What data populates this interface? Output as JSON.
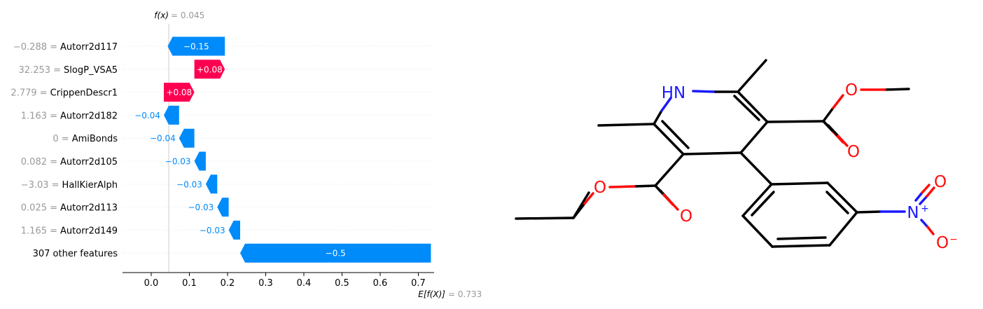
{
  "chart_data": {
    "type": "waterfall",
    "fx_label": "f(x)",
    "fx_value": "= 0.045",
    "efx_label": "E[f(X)]",
    "efx_value": "= 0.733",
    "fx": 0.045,
    "base_value": 0.733,
    "xlim": [
      -0.075,
      0.735
    ],
    "xticks": [
      "0.0",
      "0.1",
      "0.2",
      "0.3",
      "0.4",
      "0.5",
      "0.6",
      "0.7"
    ],
    "features": [
      {
        "value": "−0.288 =",
        "name": "Autorr2d117",
        "shap": -0.15,
        "label": "−0.15"
      },
      {
        "value": "32.253 =",
        "name": "SlogP_VSA5",
        "shap": 0.08,
        "label": "+0.08"
      },
      {
        "value": "2.779 =",
        "name": "CrippenDescr1",
        "shap": 0.08,
        "label": "+0.08"
      },
      {
        "value": "1.163 =",
        "name": "Autorr2d182",
        "shap": -0.04,
        "label": "−0.04"
      },
      {
        "value": "0 =",
        "name": "AmiBonds",
        "shap": -0.04,
        "label": "−0.04"
      },
      {
        "value": "0.082 =",
        "name": "Autorr2d105",
        "shap": -0.03,
        "label": "−0.03"
      },
      {
        "value": "−3.03 =",
        "name": "HallKierAlph",
        "shap": -0.03,
        "label": "−0.03"
      },
      {
        "value": "0.025 =",
        "name": "Autorr2d113",
        "shap": -0.03,
        "label": "−0.03"
      },
      {
        "value": "1.165 =",
        "name": "Autorr2d149",
        "shap": -0.03,
        "label": "−0.03"
      },
      {
        "value": "",
        "name": "307 other features",
        "shap": -0.5,
        "label": "−0.5"
      }
    ],
    "colors": {
      "positive": "#ff0051",
      "negative": "#008bfb"
    }
  },
  "molecule": {
    "atoms": {
      "hn": "HN",
      "o": "O",
      "n_plus": "N",
      "plus": "+",
      "minus": "−"
    },
    "colors": {
      "carbon": "#000000",
      "oxygen": "#ff0d0d",
      "nitrogen": "#1a1aff"
    }
  }
}
